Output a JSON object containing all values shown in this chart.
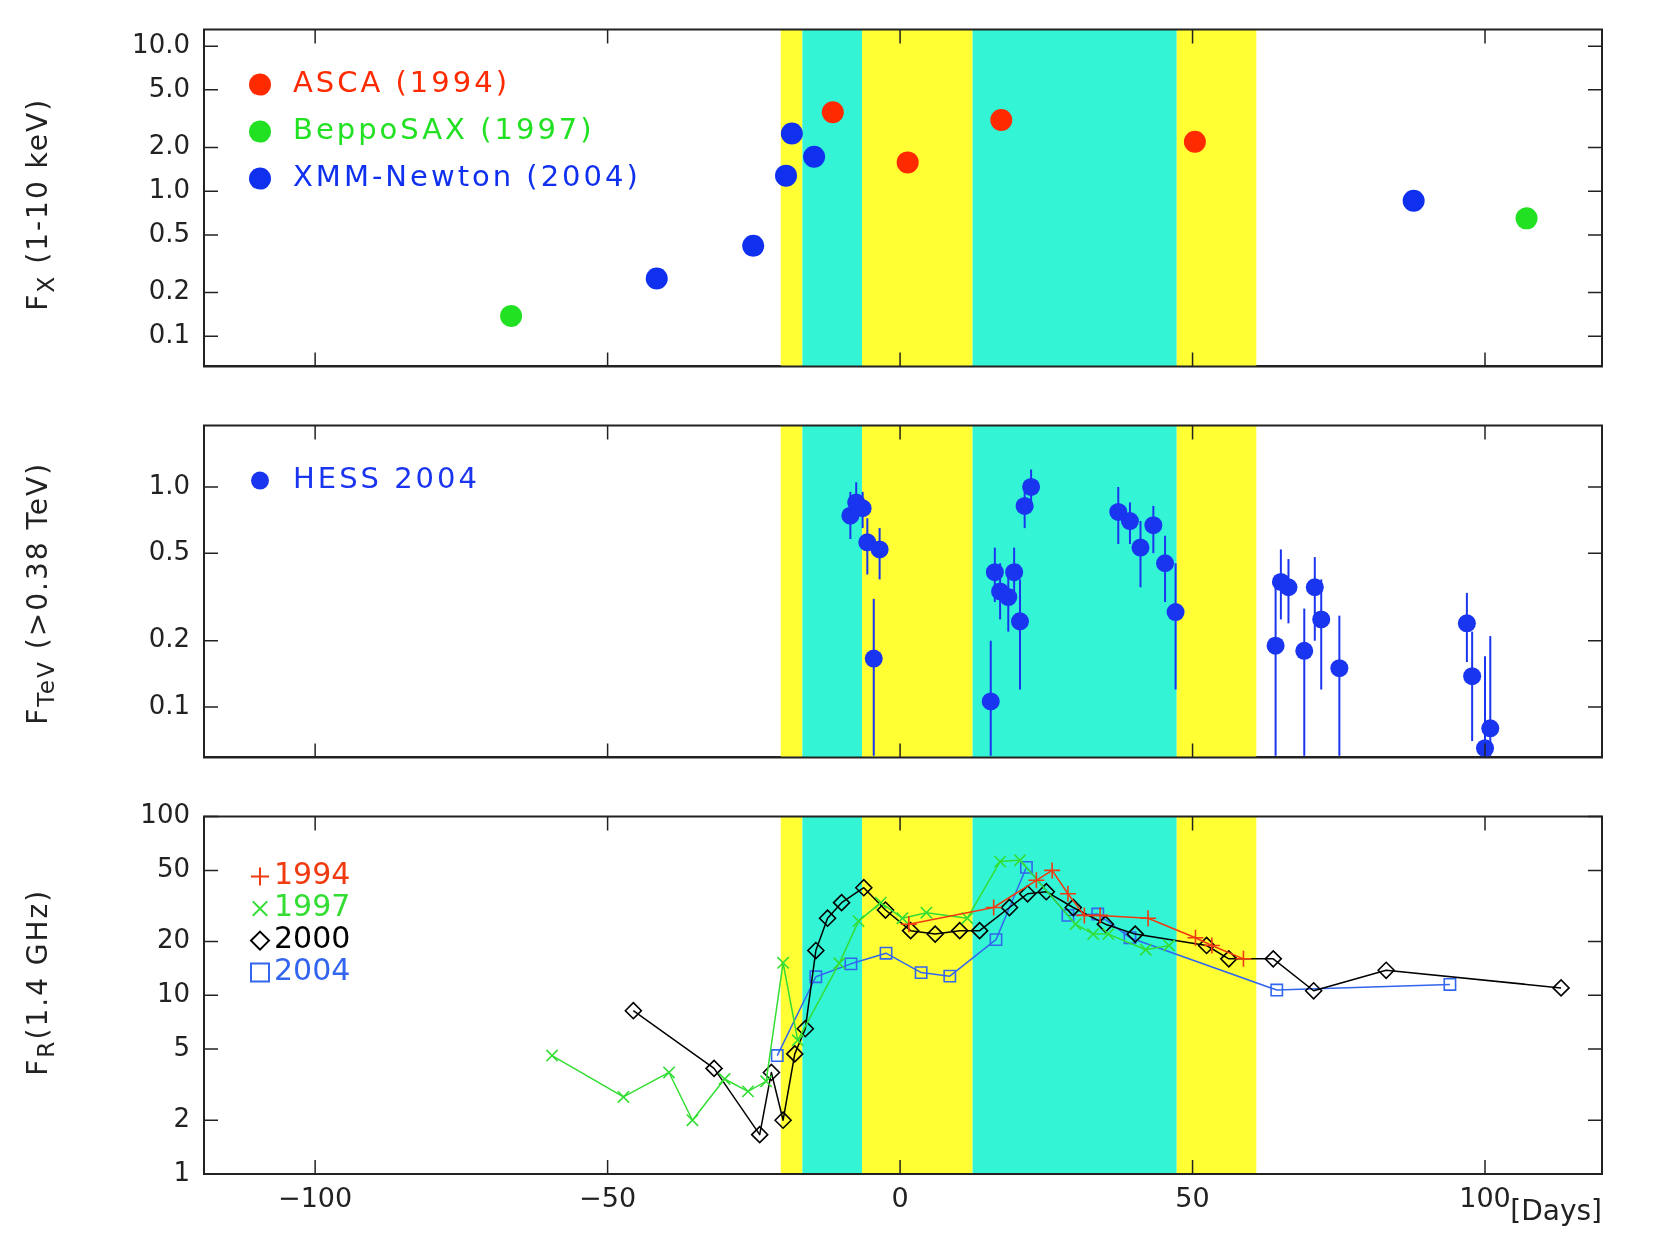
{
  "chart_data": [
    {
      "type": "scatter",
      "ylabel": "F$_{X}$ (1-10 keV)",
      "log": "y",
      "xlim": [
        -119,
        120
      ],
      "xticks": [
        -100,
        -50,
        0,
        50,
        100
      ],
      "ylim": [
        0.062,
        13
      ],
      "yticks": [
        {
          "value": 0.1,
          "label": "0.1"
        },
        {
          "value": 0.2,
          "label": "0.2"
        },
        {
          "value": 0.5,
          "label": "0.5"
        },
        {
          "value": 1,
          "label": "1.0"
        },
        {
          "value": 2,
          "label": "2.0"
        },
        {
          "value": 5,
          "label": "5.0"
        },
        {
          "value": 10,
          "label": "10.0"
        }
      ],
      "tick_labels": "y",
      "legend": "top left",
      "marker": "circle",
      "bands": [
        {
          "axis": "x",
          "from": -20.4,
          "to": -16.7,
          "color": "#ffff33"
        },
        {
          "axis": "x",
          "from": -16.7,
          "to": -6.5,
          "color": "#33f5d5"
        },
        {
          "axis": "x",
          "from": -6.5,
          "to": 12.4,
          "color": "#ffff33"
        },
        {
          "axis": "x",
          "from": 12.4,
          "to": 47.3,
          "color": "#33f5d5"
        },
        {
          "axis": "x",
          "from": 47.3,
          "to": 60.9,
          "color": "#ffff33"
        }
      ],
      "series": [
        {
          "name": "ASCA (1994)",
          "color": "#ff2a00",
          "x": [
            -11.5,
            1.3,
            17.3,
            50.4
          ],
          "values": [
            3.5,
            1.58,
            3.1,
            2.19
          ]
        },
        {
          "name": "BeppoSAX (1997)",
          "color": "#22e022",
          "x": [
            -66.5,
            107.1
          ],
          "values": [
            0.138,
            0.65
          ]
        },
        {
          "name": "XMM-Newton (2004)",
          "color": "#1030f0",
          "x": [
            -41.6,
            -25.1,
            -19.5,
            -18.5,
            -14.7,
            87.8
          ],
          "values": [
            0.25,
            0.42,
            1.28,
            2.5,
            1.73,
            0.86
          ]
        }
      ]
    },
    {
      "type": "scatter",
      "ylabel": "F$_{TeV}$ (>0.38 TeV)",
      "log": "y",
      "xlim": [
        -119,
        120
      ],
      "xticks": [
        -100,
        -50,
        0,
        50,
        100
      ],
      "ylim": [
        0.059,
        1.9
      ],
      "yticks": [
        {
          "value": 0.1,
          "label": "0.1"
        },
        {
          "value": 0.2,
          "label": "0.2"
        },
        {
          "value": 0.5,
          "label": "0.5"
        },
        {
          "value": 1,
          "label": "1.0"
        }
      ],
      "tick_labels": "y",
      "legend": "top left",
      "marker": "circle",
      "bands": [
        {
          "axis": "x",
          "from": -20.4,
          "to": -16.7,
          "color": "#ffff33"
        },
        {
          "axis": "x",
          "from": -16.7,
          "to": -6.5,
          "color": "#33f5d5"
        },
        {
          "axis": "x",
          "from": -6.5,
          "to": 12.4,
          "color": "#ffff33"
        },
        {
          "axis": "x",
          "from": 12.4,
          "to": 47.3,
          "color": "#33f5d5"
        },
        {
          "axis": "x",
          "from": 47.3,
          "to": 60.9,
          "color": "#ffff33"
        }
      ],
      "series": [
        {
          "name": "HESS 2004",
          "color": "#1a35f0",
          "x": [
            -8.5,
            -7.5,
            -6.4,
            -5.6,
            -3.5,
            -4.5,
            15.5,
            16.2,
            17.1,
            18.5,
            19.5,
            20.5,
            21.3,
            22.4,
            37.3,
            39.3,
            41.1,
            43.3,
            45.3,
            47.1,
            64.2,
            65.1,
            66.4,
            69.1,
            70.9,
            72.0,
            75.1,
            96.9,
            97.8,
            100,
            100.9
          ],
          "values": [
            0.74,
            0.85,
            0.8,
            0.56,
            0.52,
            0.166,
            0.106,
            0.41,
            0.335,
            0.316,
            0.41,
            0.245,
            0.82,
            1.0,
            0.77,
            0.7,
            0.53,
            0.67,
            0.45,
            0.27,
            0.19,
            0.37,
            0.35,
            0.18,
            0.35,
            0.25,
            0.15,
            0.24,
            0.138,
            0.065,
            0.08
          ],
          "errors": [
            [
              0.58,
              0.95
            ],
            [
              0.7,
              1.05
            ],
            [
              0.65,
              0.95
            ],
            [
              0.4,
              0.72
            ],
            [
              0.38,
              0.65
            ],
            [
              0.06,
              0.31
            ],
            [
              0.06,
              0.2
            ],
            [
              0.3,
              0.53
            ],
            [
              0.25,
              0.45
            ],
            [
              0.22,
              0.42
            ],
            [
              0.3,
              0.53
            ],
            [
              0.12,
              0.38
            ],
            [
              0.65,
              1.0
            ],
            [
              0.85,
              1.2
            ],
            [
              0.55,
              1.0
            ],
            [
              0.55,
              0.85
            ],
            [
              0.35,
              0.7
            ],
            [
              0.5,
              0.82
            ],
            [
              0.3,
              0.6
            ],
            [
              0.12,
              0.45
            ],
            [
              0.06,
              0.35
            ],
            [
              0.25,
              0.52
            ],
            [
              0.24,
              0.47
            ],
            [
              0.06,
              0.28
            ],
            [
              0.2,
              0.48
            ],
            [
              0.12,
              0.38
            ],
            [
              0.06,
              0.26
            ],
            [
              0.16,
              0.33
            ],
            [
              0.07,
              0.22
            ],
            [
              0.06,
              0.17
            ],
            [
              0.06,
              0.21
            ]
          ]
        }
      ]
    },
    {
      "type": "line",
      "ylabel": "F$_{R}$(1.4 GHz)",
      "xlabel": "[Days]",
      "log": "y",
      "xlim": [
        -119,
        120
      ],
      "xticks": [
        -100,
        -50,
        0,
        50,
        100
      ],
      "ylim": [
        1,
        100
      ],
      "yticks": [
        1,
        2,
        5,
        10,
        20,
        50,
        100
      ],
      "legend": "top left",
      "bands": [
        {
          "axis": "x",
          "from": -20.4,
          "to": -16.7,
          "color": "#ffff33"
        },
        {
          "axis": "x",
          "from": -16.7,
          "to": -6.5,
          "color": "#33f5d5"
        },
        {
          "axis": "x",
          "from": -6.5,
          "to": 12.4,
          "color": "#ffff33"
        },
        {
          "axis": "x",
          "from": 12.4,
          "to": 47.3,
          "color": "#33f5d5"
        },
        {
          "axis": "x",
          "from": 47.3,
          "to": 60.9,
          "color": "#ffff33"
        }
      ],
      "series": [
        {
          "name": "1994",
          "color": "#f03a10",
          "marker": "cross",
          "x": [
            1.5,
            16,
            23.3,
            26,
            28.7,
            31.5,
            34.2,
            42.4,
            50.5,
            53.3,
            58.7
          ],
          "values": [
            25,
            31,
            44,
            50,
            37,
            28,
            28,
            27,
            21,
            19,
            16
          ]
        },
        {
          "name": "1997",
          "color": "#33dd33",
          "marker": "x",
          "x": [
            -59.5,
            -47.3,
            -39.5,
            -35.5,
            -30,
            -26,
            -22.9,
            -20,
            -17.5,
            -10.4,
            -7.1,
            -3.3,
            0.4,
            4.5,
            11.5,
            17.1,
            20.5,
            30,
            33,
            35.6,
            42,
            46
          ],
          "values": [
            4.6,
            2.7,
            3.7,
            2.0,
            3.4,
            2.9,
            3.3,
            15.2,
            5.6,
            15.1,
            26,
            33,
            27,
            29,
            27,
            56,
            57,
            25,
            22,
            22,
            18,
            19
          ]
        },
        {
          "name": "2000",
          "color": "#000000",
          "marker": "diamond",
          "x": [
            -45.6,
            -31.8,
            -24,
            -22,
            -20,
            -18,
            -16.2,
            -14.4,
            -12.4,
            -10,
            -6.2,
            -2.5,
            1.8,
            6,
            10.2,
            13.6,
            18.7,
            21.8,
            25,
            29.6,
            35.1,
            40.2,
            52.4,
            56.2,
            63.8,
            70.7,
            83.1,
            113
          ],
          "values": [
            8.2,
            3.9,
            1.66,
            3.7,
            2.0,
            4.7,
            6.5,
            17.8,
            27,
            33,
            40,
            30,
            23,
            22,
            23,
            23,
            31,
            37,
            38,
            31,
            25,
            22,
            19,
            16,
            16,
            10.6,
            13.8,
            11
          ]
        },
        {
          "name": "2004",
          "color": "#3366ee",
          "marker": "square",
          "x": [
            -21,
            -14.4,
            -8.4,
            -2.4,
            3.6,
            8.5,
            16.4,
            21.6,
            28.7,
            33.8,
            39.3,
            64.4,
            94
          ],
          "values": [
            4.6,
            12.7,
            15,
            17.2,
            13.4,
            12.8,
            20.5,
            52,
            28,
            28.5,
            21,
            10.7,
            11.5
          ]
        }
      ]
    }
  ]
}
